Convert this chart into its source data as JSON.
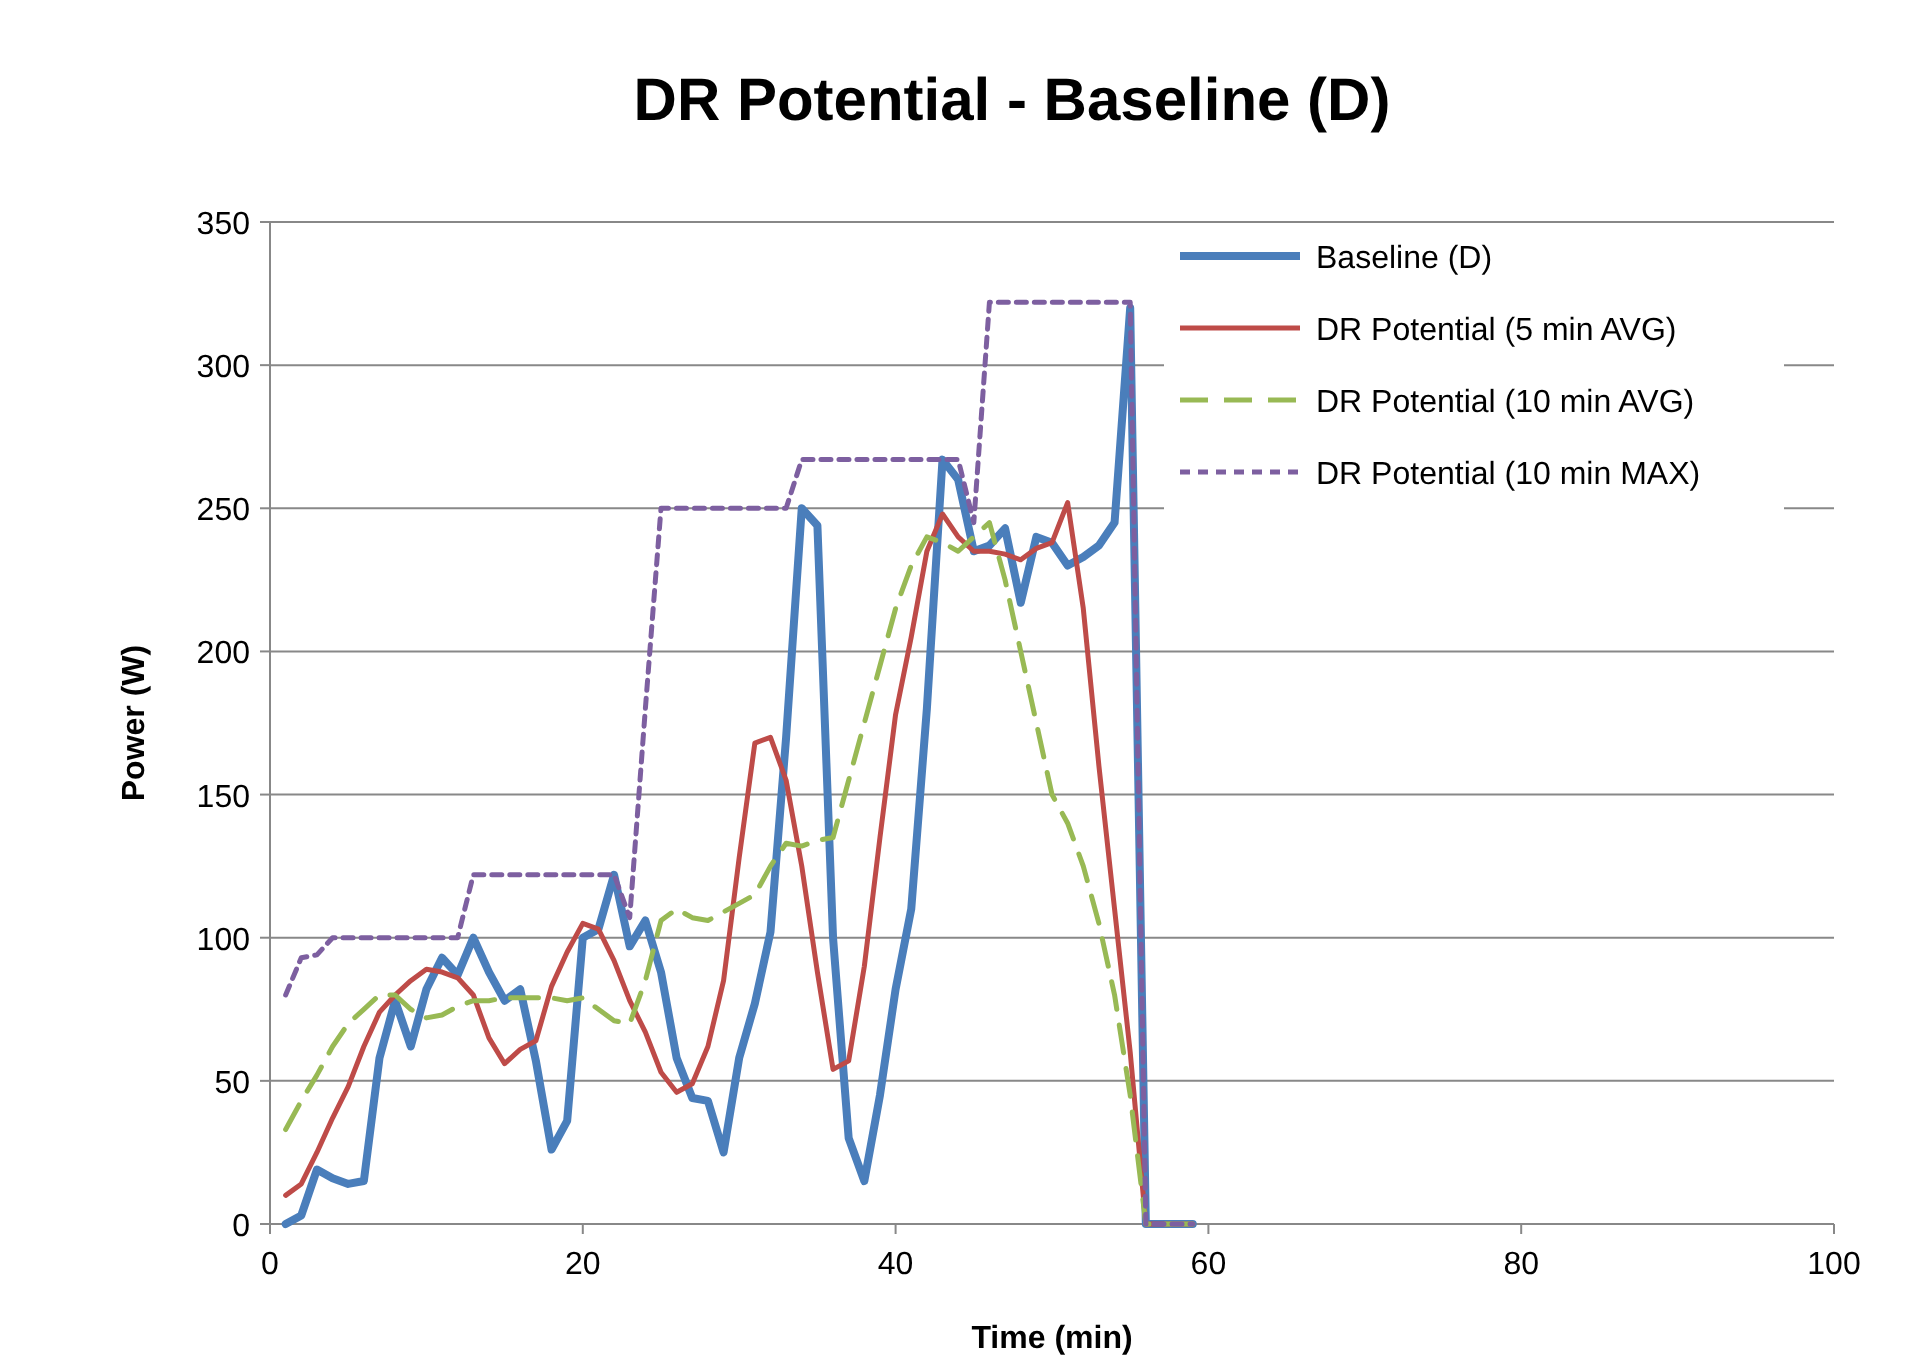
{
  "chart_data": {
    "type": "line",
    "title": "DR Potential - Baseline (D)",
    "xlabel": "Time (min)",
    "ylabel": "Power (W)",
    "xlim": [
      0,
      100
    ],
    "xticks": [
      0,
      20,
      40,
      60,
      80,
      100
    ],
    "ylim": [
      0,
      350
    ],
    "yticks": [
      0,
      50,
      100,
      150,
      200,
      250,
      300,
      350
    ],
    "grid": "y",
    "legend": "top right",
    "x": [
      1,
      2,
      3,
      4,
      5,
      6,
      7,
      8,
      9,
      10,
      11,
      12,
      13,
      14,
      15,
      16,
      17,
      18,
      19,
      20,
      21,
      22,
      23,
      24,
      25,
      26,
      27,
      28,
      29,
      30,
      31,
      32,
      33,
      34,
      35,
      36,
      37,
      38,
      39,
      40,
      41,
      42,
      43,
      44,
      45,
      46,
      47,
      48,
      49,
      50,
      51,
      52,
      53,
      54,
      55,
      56,
      57,
      58,
      59
    ],
    "series": [
      {
        "name": "Baseline (D)",
        "color": "#4a7ebb",
        "line_style": "solid",
        "values": [
          0,
          3,
          19,
          16,
          14,
          15,
          58,
          78,
          62,
          82,
          93,
          87,
          100,
          88,
          78,
          82,
          57,
          26,
          36,
          100,
          103,
          122,
          97,
          106,
          88,
          58,
          44,
          43,
          25,
          58,
          77,
          102,
          170,
          250,
          244,
          100,
          30,
          15,
          45,
          82,
          110,
          180,
          267,
          260,
          235,
          237,
          243,
          217,
          240,
          238,
          230,
          233,
          237,
          245,
          320,
          0,
          0,
          0,
          0
        ]
      },
      {
        "name": "DR Potential (5 min AVG)",
        "color": "#be4b48",
        "line_style": "solid",
        "values": [
          10,
          14,
          25,
          37,
          48,
          62,
          74,
          80,
          85,
          89,
          88,
          86,
          80,
          65,
          56,
          61,
          64,
          83,
          95,
          105,
          103,
          92,
          78,
          67,
          53,
          46,
          49,
          62,
          85,
          128,
          168,
          170,
          155,
          125,
          88,
          54,
          57,
          90,
          135,
          178,
          205,
          235,
          248,
          240,
          235,
          235,
          234,
          232,
          236,
          238,
          252,
          215,
          160,
          110,
          60,
          0,
          0,
          0,
          0
        ]
      },
      {
        "name": "DR Potential (10 min AVG)",
        "color": "#98b954",
        "line_style": "dashed",
        "values": [
          33,
          43,
          52,
          62,
          70,
          75,
          80,
          80,
          75,
          72,
          73,
          76,
          78,
          78,
          79,
          79,
          79,
          79,
          78,
          79,
          75,
          71,
          70,
          85,
          106,
          110,
          107,
          106,
          109,
          112,
          115,
          125,
          133,
          132,
          134,
          135,
          155,
          175,
          195,
          215,
          230,
          240,
          238,
          235,
          240,
          245,
          225,
          200,
          175,
          150,
          140,
          125,
          105,
          80,
          45,
          0,
          0,
          0,
          0
        ]
      },
      {
        "name": "DR Potential (10 min MAX)",
        "color": "#7d5fa0",
        "line_style": "dotted",
        "values": [
          80,
          93,
          94,
          100,
          100,
          100,
          100,
          100,
          100,
          100,
          100,
          100,
          122,
          122,
          122,
          122,
          122,
          122,
          122,
          122,
          122,
          122,
          107,
          180,
          250,
          250,
          250,
          250,
          250,
          250,
          250,
          250,
          250,
          267,
          267,
          267,
          267,
          267,
          267,
          267,
          267,
          267,
          267,
          267,
          245,
          322,
          322,
          322,
          322,
          322,
          322,
          322,
          322,
          322,
          322,
          0,
          0,
          0,
          0
        ]
      }
    ]
  }
}
